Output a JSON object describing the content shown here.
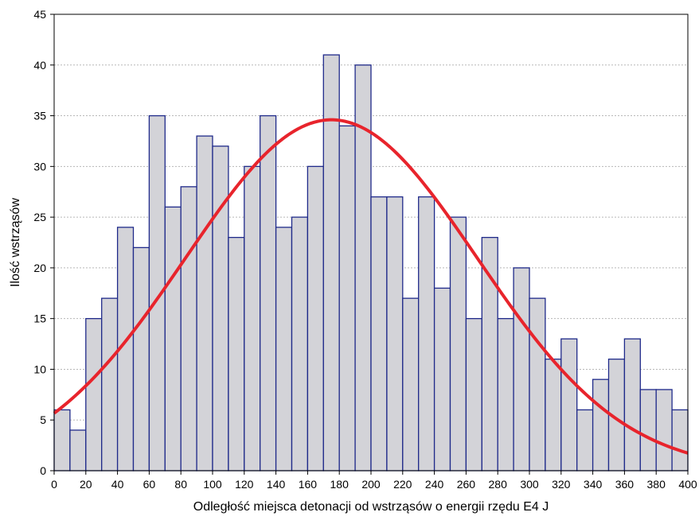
{
  "chart_data": {
    "type": "bar",
    "subtype": "histogram-with-fit-curve",
    "xlabel": "Odległość miejsca detonacji od wstrząsów o energii rzędu E4 J",
    "ylabel": "Ilość wstrząsów",
    "xlim": [
      0,
      400
    ],
    "ylim": [
      0,
      45
    ],
    "x_ticks": [
      0,
      20,
      40,
      60,
      80,
      100,
      120,
      140,
      160,
      180,
      200,
      220,
      240,
      260,
      280,
      300,
      320,
      340,
      360,
      380,
      400
    ],
    "y_ticks": [
      0,
      5,
      10,
      15,
      20,
      25,
      30,
      35,
      40,
      45
    ],
    "grid": "horizontal-dashed",
    "bin_width": 10,
    "bins": [
      {
        "start": 0,
        "value": 6
      },
      {
        "start": 10,
        "value": 4
      },
      {
        "start": 20,
        "value": 15
      },
      {
        "start": 30,
        "value": 17
      },
      {
        "start": 40,
        "value": 24
      },
      {
        "start": 50,
        "value": 22
      },
      {
        "start": 60,
        "value": 35
      },
      {
        "start": 70,
        "value": 26
      },
      {
        "start": 80,
        "value": 28
      },
      {
        "start": 90,
        "value": 33
      },
      {
        "start": 100,
        "value": 32
      },
      {
        "start": 110,
        "value": 23
      },
      {
        "start": 120,
        "value": 30
      },
      {
        "start": 130,
        "value": 35
      },
      {
        "start": 140,
        "value": 24
      },
      {
        "start": 150,
        "value": 25
      },
      {
        "start": 160,
        "value": 30
      },
      {
        "start": 170,
        "value": 41
      },
      {
        "start": 180,
        "value": 34
      },
      {
        "start": 190,
        "value": 40
      },
      {
        "start": 200,
        "value": 27
      },
      {
        "start": 210,
        "value": 27
      },
      {
        "start": 220,
        "value": 17
      },
      {
        "start": 230,
        "value": 27
      },
      {
        "start": 240,
        "value": 18
      },
      {
        "start": 250,
        "value": 25
      },
      {
        "start": 260,
        "value": 15
      },
      {
        "start": 270,
        "value": 23
      },
      {
        "start": 280,
        "value": 15
      },
      {
        "start": 290,
        "value": 20
      },
      {
        "start": 300,
        "value": 17
      },
      {
        "start": 310,
        "value": 11
      },
      {
        "start": 320,
        "value": 13
      },
      {
        "start": 330,
        "value": 6
      },
      {
        "start": 340,
        "value": 9
      },
      {
        "start": 350,
        "value": 11
      },
      {
        "start": 360,
        "value": 13
      },
      {
        "start": 370,
        "value": 8
      },
      {
        "start": 380,
        "value": 8
      },
      {
        "start": 390,
        "value": 6
      }
    ],
    "fit_curve": {
      "type": "normal",
      "mean": 175,
      "sd": 92,
      "peak": 34.6
    },
    "colors": {
      "bar_fill": "#d3d3d8",
      "bar_stroke": "#1f2a8a",
      "curve": "#e8242c",
      "grid": "#b8b8b8",
      "axis": "#000000"
    }
  }
}
